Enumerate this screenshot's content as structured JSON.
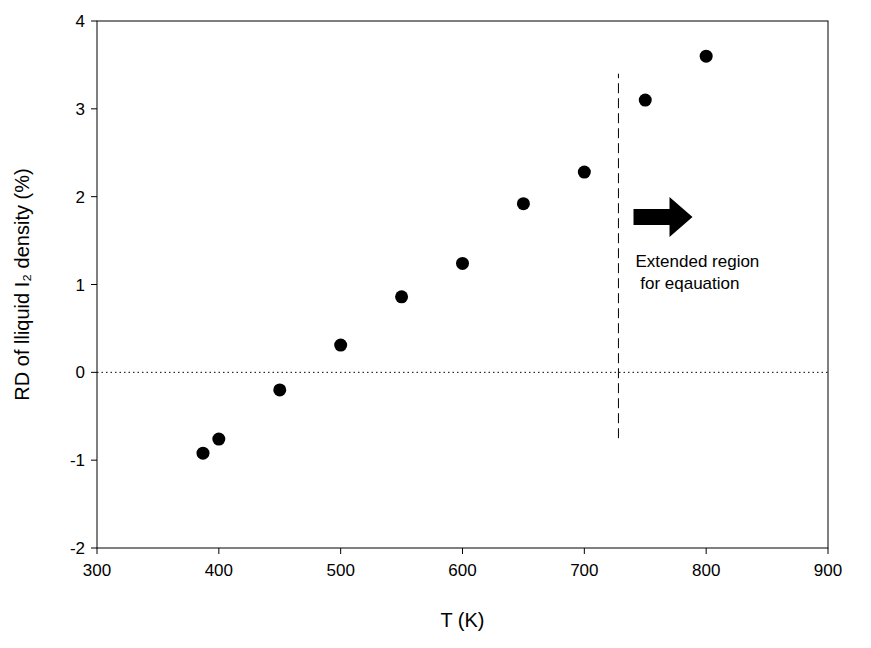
{
  "chart_data": {
    "type": "scatter",
    "x_label": "T (K)",
    "y_label": "RD of lliquid I₂ density (%)",
    "x": [
      387,
      400,
      450,
      500,
      550,
      600,
      650,
      700,
      750,
      800
    ],
    "values": [
      -0.92,
      -0.76,
      -0.2,
      0.31,
      0.86,
      1.24,
      1.92,
      2.28,
      3.1,
      3.6
    ],
    "color": "#000000",
    "marker": "circle",
    "xlim": [
      300,
      900
    ],
    "ylim": [
      -2,
      4
    ],
    "xticks": [
      300,
      400,
      500,
      600,
      700,
      800,
      900
    ],
    "yticks": [
      -2,
      -1,
      0,
      1,
      2,
      3,
      4
    ],
    "grid": false,
    "reference_lines": [
      {
        "x": 728,
        "y_range": [
          -0.75,
          3.4
        ],
        "line_style": "dashed"
      },
      {
        "y": 0,
        "line_style": "dotted"
      }
    ],
    "annotation": {
      "lines": [
        "Extended region",
        " for eqauation"
      ],
      "x": 742,
      "y": 1.2
    }
  }
}
